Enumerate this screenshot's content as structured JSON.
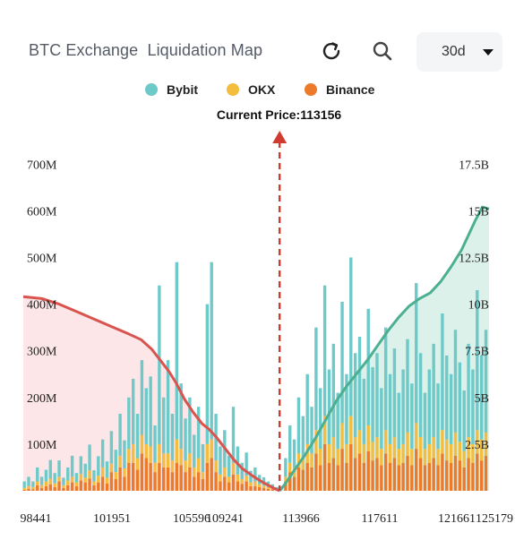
{
  "header": {
    "title": "BTC Exchange  Liquidation Map",
    "range_value": "30d"
  },
  "icons": {
    "refresh": "refresh-icon",
    "search": "search-icon",
    "caret": "caret-down-icon"
  },
  "legend": [
    {
      "label": "Bybit",
      "color": "#6ec9c9"
    },
    {
      "label": "OKX",
      "color": "#f5bd3d"
    },
    {
      "label": "Binance",
      "color": "#ec7a2b"
    }
  ],
  "current_price_label": "Current Price:113156",
  "chart_data": {
    "type": "bar",
    "title": "BTC Exchange  Liquidation Map",
    "current_price": 113156,
    "x_ticks": [
      98441,
      101951,
      105596,
      109241,
      113966,
      117611,
      121661,
      125179
    ],
    "xlim": [
      98441,
      125179
    ],
    "left_axis": {
      "ticks": [
        "700M",
        "600M",
        "500M",
        "400M",
        "300M",
        "200M",
        "100M"
      ],
      "ylim": [
        0,
        760
      ]
    },
    "right_axis": {
      "ticks": [
        "17.5B",
        "15B",
        "12.5B",
        "10B",
        "7.5B",
        "5B",
        "2.5B"
      ],
      "ylim": [
        0,
        19
      ]
    },
    "series": [
      {
        "name": "Bybit",
        "stack": "liquidation"
      },
      {
        "name": "OKX",
        "stack": "liquidation"
      },
      {
        "name": "Binance",
        "stack": "liquidation"
      }
    ],
    "bars_note_units": "USD millions, per price level (Binance, OKX, Bybit stacked)",
    "bars": [
      [
        98500,
        14,
        4,
        2
      ],
      [
        98750,
        20,
        6,
        4
      ],
      [
        99000,
        12,
        5,
        3
      ],
      [
        99250,
        30,
        8,
        12
      ],
      [
        99500,
        18,
        6,
        6
      ],
      [
        99750,
        25,
        10,
        10
      ],
      [
        100000,
        40,
        12,
        14
      ],
      [
        100250,
        22,
        8,
        8
      ],
      [
        100500,
        35,
        10,
        20
      ],
      [
        100750,
        16,
        6,
        6
      ],
      [
        101000,
        28,
        10,
        12
      ],
      [
        101250,
        45,
        12,
        18
      ],
      [
        101500,
        20,
        8,
        10
      ],
      [
        101750,
        38,
        14,
        22
      ],
      [
        102000,
        30,
        10,
        18
      ],
      [
        102250,
        55,
        18,
        26
      ],
      [
        102500,
        24,
        8,
        12
      ],
      [
        102750,
        42,
        14,
        18
      ],
      [
        103000,
        60,
        20,
        30
      ],
      [
        103250,
        35,
        12,
        16
      ],
      [
        103500,
        70,
        18,
        40
      ],
      [
        103750,
        48,
        15,
        25
      ],
      [
        104000,
        90,
        25,
        50
      ],
      [
        104250,
        60,
        18,
        30
      ],
      [
        104500,
        110,
        30,
        60
      ],
      [
        104750,
        140,
        40,
        60
      ],
      [
        105000,
        95,
        25,
        45
      ],
      [
        105250,
        160,
        40,
        80
      ],
      [
        105500,
        120,
        30,
        70
      ],
      [
        105750,
        150,
        35,
        60
      ],
      [
        106000,
        80,
        20,
        40
      ],
      [
        106250,
        340,
        40,
        60
      ],
      [
        106500,
        120,
        30,
        50
      ],
      [
        106750,
        200,
        30,
        50
      ],
      [
        107000,
        100,
        25,
        40
      ],
      [
        107250,
        380,
        50,
        60
      ],
      [
        107500,
        140,
        35,
        55
      ],
      [
        107750,
        90,
        25,
        40
      ],
      [
        108000,
        120,
        30,
        50
      ],
      [
        108250,
        70,
        20,
        30
      ],
      [
        108500,
        110,
        30,
        40
      ],
      [
        108750,
        60,
        15,
        25
      ],
      [
        109000,
        300,
        40,
        60
      ],
      [
        109250,
        380,
        40,
        70
      ],
      [
        109500,
        100,
        25,
        40
      ],
      [
        109750,
        60,
        15,
        20
      ],
      [
        110000,
        80,
        20,
        30
      ],
      [
        110250,
        45,
        12,
        18
      ],
      [
        110500,
        120,
        25,
        35
      ],
      [
        110750,
        60,
        15,
        20
      ],
      [
        111000,
        35,
        10,
        15
      ],
      [
        111250,
        50,
        12,
        20
      ],
      [
        111500,
        25,
        8,
        10
      ],
      [
        111750,
        30,
        10,
        10
      ],
      [
        112000,
        20,
        6,
        8
      ],
      [
        112250,
        18,
        5,
        6
      ],
      [
        112500,
        12,
        4,
        4
      ],
      [
        112750,
        8,
        3,
        3
      ],
      [
        113000,
        4,
        2,
        2
      ],
      [
        113500,
        40,
        10,
        20
      ],
      [
        113750,
        80,
        20,
        40
      ],
      [
        114000,
        60,
        20,
        30
      ],
      [
        114250,
        120,
        30,
        50
      ],
      [
        114500,
        90,
        25,
        45
      ],
      [
        114750,
        150,
        40,
        60
      ],
      [
        115000,
        100,
        30,
        50
      ],
      [
        115250,
        220,
        50,
        80
      ],
      [
        115500,
        130,
        35,
        55
      ],
      [
        115750,
        280,
        60,
        100
      ],
      [
        116000,
        160,
        40,
        60
      ],
      [
        116250,
        200,
        45,
        70
      ],
      [
        116500,
        120,
        35,
        55
      ],
      [
        116750,
        260,
        55,
        90
      ],
      [
        117000,
        150,
        40,
        60
      ],
      [
        117250,
        340,
        60,
        100
      ],
      [
        117500,
        180,
        45,
        70
      ],
      [
        117750,
        200,
        50,
        80
      ],
      [
        118000,
        140,
        40,
        60
      ],
      [
        118250,
        250,
        55,
        85
      ],
      [
        118500,
        160,
        40,
        65
      ],
      [
        118750,
        180,
        45,
        70
      ],
      [
        119000,
        130,
        35,
        55
      ],
      [
        119250,
        220,
        50,
        80
      ],
      [
        119500,
        150,
        40,
        60
      ],
      [
        119750,
        190,
        45,
        70
      ],
      [
        120000,
        120,
        35,
        55
      ],
      [
        120250,
        160,
        40,
        60
      ],
      [
        120500,
        200,
        50,
        75
      ],
      [
        120750,
        140,
        35,
        55
      ],
      [
        121000,
        300,
        55,
        90
      ],
      [
        121250,
        180,
        45,
        70
      ],
      [
        121500,
        120,
        35,
        55
      ],
      [
        121750,
        160,
        40,
        60
      ],
      [
        122000,
        200,
        45,
        70
      ],
      [
        122250,
        140,
        35,
        55
      ],
      [
        122500,
        250,
        50,
        80
      ],
      [
        122750,
        180,
        45,
        65
      ],
      [
        123000,
        150,
        40,
        60
      ],
      [
        123250,
        220,
        50,
        75
      ],
      [
        123500,
        170,
        40,
        65
      ],
      [
        123750,
        130,
        35,
        50
      ],
      [
        124000,
        200,
        45,
        70
      ],
      [
        124250,
        160,
        40,
        60
      ],
      [
        124500,
        300,
        50,
        80
      ],
      [
        124750,
        180,
        45,
        65
      ],
      [
        125000,
        220,
        50,
        75
      ]
    ],
    "cumulative_note_units": "USD billions, right axis",
    "cumulative_short": [
      [
        98441,
        10.4
      ],
      [
        99500,
        10.3
      ],
      [
        100500,
        10.0
      ],
      [
        101500,
        9.6
      ],
      [
        102500,
        9.2
      ],
      [
        103500,
        8.8
      ],
      [
        104500,
        8.4
      ],
      [
        105200,
        8.1
      ],
      [
        105800,
        7.6
      ],
      [
        106300,
        7.0
      ],
      [
        106800,
        6.4
      ],
      [
        107200,
        5.8
      ],
      [
        107700,
        4.9
      ],
      [
        108200,
        4.2
      ],
      [
        108700,
        3.6
      ],
      [
        109100,
        3.3
      ],
      [
        109500,
        2.9
      ],
      [
        110000,
        2.3
      ],
      [
        110500,
        1.7
      ],
      [
        111000,
        1.2
      ],
      [
        111600,
        0.8
      ],
      [
        112200,
        0.45
      ],
      [
        112800,
        0.15
      ],
      [
        113156,
        0.0
      ]
    ],
    "cumulative_long": [
      [
        113156,
        0.0
      ],
      [
        113500,
        0.4
      ],
      [
        114000,
        1.1
      ],
      [
        114600,
        1.9
      ],
      [
        115200,
        2.8
      ],
      [
        115800,
        3.8
      ],
      [
        116400,
        4.8
      ],
      [
        117000,
        5.6
      ],
      [
        117600,
        6.3
      ],
      [
        118200,
        7.0
      ],
      [
        118800,
        7.8
      ],
      [
        119400,
        8.6
      ],
      [
        120000,
        9.3
      ],
      [
        120600,
        9.9
      ],
      [
        121200,
        10.3
      ],
      [
        121800,
        10.6
      ],
      [
        122400,
        11.2
      ],
      [
        123000,
        12.0
      ],
      [
        123600,
        12.9
      ],
      [
        124000,
        13.7
      ],
      [
        124400,
        14.5
      ],
      [
        124800,
        15.2
      ],
      [
        125179,
        15.1
      ]
    ],
    "colors": {
      "short_line": "#d9534f",
      "short_fill": "#fde6e7",
      "long_line": "#4caf91",
      "long_fill": "#dcf1ea",
      "marker": "#d13a2f"
    }
  }
}
